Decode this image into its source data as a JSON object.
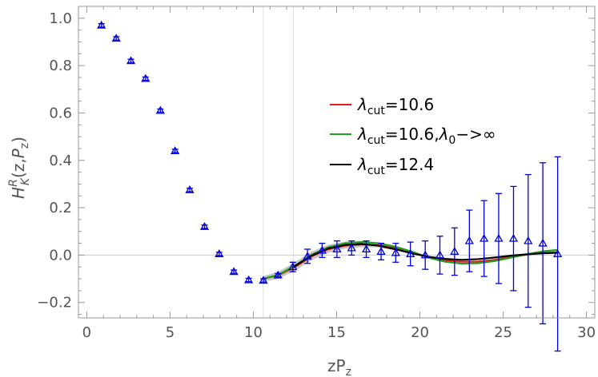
{
  "chart_data": {
    "type": "scatter",
    "xlabel": "zP_z",
    "ylabel": "H^R_K(z,P_z)",
    "xlim": [
      -0.5,
      30.5
    ],
    "ylim": [
      -0.265,
      1.05
    ],
    "xticks": [
      0,
      5,
      10,
      15,
      20,
      25,
      30
    ],
    "yticks": [
      -0.2,
      0.0,
      0.2,
      0.4,
      0.6,
      0.8,
      1.0
    ],
    "ytick_labels": [
      "−0.2",
      "0.0",
      "0.2",
      "0.4",
      "0.6",
      "0.8",
      "1.0"
    ],
    "reference_lines_x": [
      10.6,
      12.4
    ],
    "grid": false,
    "legend_position": "right",
    "points": {
      "marker": "open-triangle",
      "color": "#0000dd",
      "x": [
        0.88,
        1.77,
        2.65,
        3.53,
        4.42,
        5.3,
        6.18,
        7.07,
        7.95,
        8.83,
        9.72,
        10.6,
        11.48,
        12.37,
        13.25,
        14.13,
        15.02,
        15.9,
        16.78,
        17.67,
        18.55,
        19.43,
        20.32,
        21.2,
        22.08,
        22.97,
        23.85,
        24.73,
        25.62,
        26.5,
        27.38,
        28.27
      ],
      "y": [
        0.97,
        0.915,
        0.82,
        0.745,
        0.61,
        0.44,
        0.275,
        0.12,
        0.005,
        -0.07,
        -0.105,
        -0.107,
        -0.085,
        -0.05,
        -0.005,
        0.02,
        0.025,
        0.03,
        0.025,
        0.015,
        0.01,
        0.005,
        0.0,
        0.0,
        0.015,
        0.06,
        0.07,
        0.07,
        0.07,
        0.06,
        0.05,
        0.005
      ],
      "err": [
        0.0,
        0.0,
        0.0,
        0.0,
        0.0,
        0.0,
        0.0,
        0.0,
        0.0,
        0.0,
        0.0,
        0.0,
        0.0,
        0.02,
        0.03,
        0.03,
        0.035,
        0.03,
        0.035,
        0.035,
        0.04,
        0.05,
        0.06,
        0.08,
        0.1,
        0.13,
        0.16,
        0.19,
        0.22,
        0.28,
        0.34,
        0.41
      ]
    },
    "series": [
      {
        "name": "λ_cut=10.6",
        "color": "#e41a1c",
        "x": [
          10.6,
          11.5,
          12.5,
          13.5,
          14.5,
          15.5,
          16.5,
          17.5,
          18.5,
          19.5,
          20.5,
          21.5,
          22.5,
          23.5,
          24.5,
          25.5,
          26.5,
          27.5,
          28.3
        ],
        "y": [
          -0.1,
          -0.085,
          -0.05,
          -0.005,
          0.025,
          0.04,
          0.045,
          0.042,
          0.03,
          0.012,
          -0.008,
          -0.022,
          -0.028,
          -0.027,
          -0.02,
          -0.008,
          0.003,
          0.01,
          0.012
        ]
      },
      {
        "name": "λ_cut=10.6,λ_0->∞",
        "color": "#1fa01f",
        "x": [
          10.6,
          11.5,
          12.5,
          13.5,
          14.5,
          15.5,
          16.5,
          17.5,
          18.5,
          19.5,
          20.5,
          21.5,
          22.5,
          23.5,
          24.5,
          25.5,
          26.5,
          27.5,
          28.3
        ],
        "y": [
          -0.1,
          -0.083,
          -0.045,
          0.002,
          0.033,
          0.05,
          0.055,
          0.05,
          0.036,
          0.015,
          -0.01,
          -0.028,
          -0.036,
          -0.034,
          -0.025,
          -0.01,
          0.005,
          0.017,
          0.022
        ]
      },
      {
        "name": "λ_cut=12.4",
        "color": "#000000",
        "x": [
          12.4,
          13.5,
          14.5,
          15.5,
          16.5,
          17.5,
          18.5,
          19.5,
          20.5,
          21.5,
          22.5,
          23.5,
          24.5,
          25.5,
          26.5,
          27.5,
          28.3
        ],
        "y": [
          -0.05,
          -0.002,
          0.028,
          0.043,
          0.047,
          0.04,
          0.025,
          0.008,
          -0.007,
          -0.016,
          -0.02,
          -0.017,
          -0.01,
          -0.002,
          0.004,
          0.008,
          0.01
        ]
      }
    ],
    "band": {
      "color": "#a0a0a0",
      "x": [
        10.6,
        11.5,
        12.5,
        13.5,
        14.5,
        15.5,
        16.5,
        17.5,
        18.5
      ],
      "y": [
        -0.1,
        -0.085,
        -0.048,
        -0.003,
        0.027,
        0.042,
        0.047,
        0.043,
        0.031
      ],
      "halfwidth": [
        0.012,
        0.015,
        0.018,
        0.018,
        0.017,
        0.015,
        0.013,
        0.011,
        0.009
      ]
    }
  }
}
